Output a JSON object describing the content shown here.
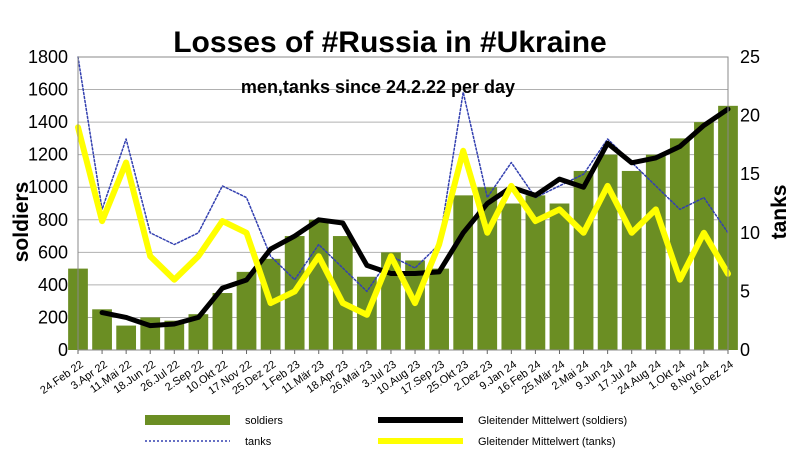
{
  "chart_data": {
    "type": "bar",
    "title": "Losses of #Russia in #Ukraine",
    "subtitle": "men,tanks since 24.2.22 per day",
    "ylabel_left": "soldiers",
    "ylabel_right": "tanks",
    "ylim_left": [
      0,
      1800
    ],
    "ylim_right": [
      0,
      25
    ],
    "yticks_left": [
      "0",
      "200",
      "400",
      "600",
      "800",
      "1000",
      "1200",
      "1400",
      "1600",
      "1800"
    ],
    "yticks_right": [
      "0",
      "5",
      "10",
      "15",
      "20",
      "25"
    ],
    "x_tick_labels": [
      "24.Feb 22",
      "3.Apr 22",
      "11.Mai 22",
      "18.Jun 22",
      "26.Jul 22",
      "2.Sep 22",
      "10.Okt 22",
      "17.Nov 22",
      "25.Dez 22",
      "1.Feb 23",
      "11.Mär 23",
      "18.Apr 23",
      "26.Mai 23",
      "3.Jul 23",
      "10.Aug 23",
      "17.Sep 23",
      "25.Okt 23",
      "2.Dez 23",
      "9.Jan 24",
      "16.Feb 24",
      "25.Mär 24",
      "2.Mai 24",
      "9.Jun 24",
      "17.Jul 24",
      "24.Aug 24",
      "1.Okt 24",
      "8.Nov 24",
      "16.Dez 24"
    ],
    "grid": true,
    "legend_position": "bottom",
    "series": [
      {
        "name": "soldiers",
        "kind": "bar",
        "axis": "left",
        "color": "#6b8e23",
        "x": [
          "24.Feb 22",
          "3.Apr 22",
          "11.Mai 22",
          "18.Jun 22",
          "26.Jul 22",
          "2.Sep 22",
          "10.Okt 22",
          "17.Nov 22",
          "25.Dez 22",
          "1.Feb 23",
          "11.Mär 23",
          "18.Apr 23",
          "26.Mai 23",
          "3.Jul 23",
          "10.Aug 23",
          "17.Sep 23",
          "25.Okt 23",
          "2.Dez 23",
          "9.Jan 24",
          "16.Feb 24",
          "25.Mär 24",
          "2.Mai 24",
          "9.Jun 24",
          "17.Jul 24",
          "24.Aug 24",
          "1.Okt 24",
          "8.Nov 24",
          "16.Dez 24"
        ],
        "values": [
          500,
          250,
          150,
          200,
          180,
          220,
          350,
          480,
          560,
          700,
          800,
          700,
          450,
          600,
          550,
          500,
          950,
          1000,
          900,
          950,
          900,
          1100,
          1200,
          1100,
          1200,
          1300,
          1400,
          1500
        ]
      },
      {
        "name": "tanks",
        "kind": "line-dotted",
        "axis": "right",
        "color": "#3340b0",
        "x": [
          "24.Feb 22",
          "3.Apr 22",
          "11.Mai 22",
          "18.Jun 22",
          "26.Jul 22",
          "2.Sep 22",
          "10.Okt 22",
          "17.Nov 22",
          "25.Dez 22",
          "1.Feb 23",
          "11.Mär 23",
          "18.Apr 23",
          "26.Mai 23",
          "3.Jul 23",
          "10.Aug 23",
          "17.Sep 23",
          "25.Okt 23",
          "2.Dez 23",
          "9.Jan 24",
          "16.Feb 24",
          "25.Mär 24",
          "2.Mai 24",
          "9.Jun 24",
          "17.Jul 24",
          "24.Aug 24",
          "1.Okt 24",
          "8.Nov 24",
          "16.Dez 24"
        ],
        "values": [
          25,
          12,
          18,
          10,
          9,
          10,
          14,
          13,
          8,
          6,
          9,
          7,
          5,
          8,
          7,
          9,
          22,
          13,
          16,
          13,
          14,
          15,
          18,
          16,
          14,
          12,
          13,
          10
        ]
      },
      {
        "name": "Gleitender Mittelwert (soldiers)",
        "kind": "line",
        "axis": "left",
        "color": "#000000",
        "x": [
          "3.Apr 22",
          "11.Mai 22",
          "18.Jun 22",
          "26.Jul 22",
          "2.Sep 22",
          "10.Okt 22",
          "17.Nov 22",
          "25.Dez 22",
          "1.Feb 23",
          "11.Mär 23",
          "18.Apr 23",
          "26.Mai 23",
          "3.Jul 23",
          "10.Aug 23",
          "17.Sep 23",
          "25.Okt 23",
          "2.Dez 23",
          "9.Jan 24",
          "16.Feb 24",
          "25.Mär 24",
          "2.Mai 24",
          "9.Jun 24",
          "17.Jul 24",
          "24.Aug 24",
          "1.Okt 24",
          "8.Nov 24",
          "16.Dez 24"
        ],
        "values": [
          230,
          200,
          150,
          160,
          200,
          380,
          430,
          620,
          700,
          800,
          780,
          520,
          470,
          470,
          480,
          720,
          900,
          1000,
          950,
          1050,
          1000,
          1270,
          1150,
          1180,
          1250,
          1380,
          1480
        ]
      },
      {
        "name": "Gleitender Mittelwert (tanks)",
        "kind": "line",
        "axis": "right",
        "color": "#ffff00",
        "x": [
          "24.Feb 22",
          "3.Apr 22",
          "11.Mai 22",
          "18.Jun 22",
          "26.Jul 22",
          "2.Sep 22",
          "10.Okt 22",
          "17.Nov 22",
          "25.Dez 22",
          "1.Feb 23",
          "11.Mär 23",
          "18.Apr 23",
          "26.Mai 23",
          "3.Jul 23",
          "10.Aug 23",
          "17.Sep 23",
          "25.Okt 23",
          "2.Dez 23",
          "9.Jan 24",
          "16.Feb 24",
          "25.Mär 24",
          "2.Mai 24",
          "9.Jun 24",
          "17.Jul 24",
          "24.Aug 24",
          "1.Okt 24",
          "8.Nov 24",
          "16.Dez 24"
        ],
        "values": [
          19,
          11,
          16,
          8,
          6,
          8,
          11,
          10,
          4,
          5,
          8,
          4,
          3,
          8,
          4,
          9,
          17,
          10,
          14,
          11,
          12,
          10,
          14,
          10,
          12,
          6,
          10,
          6.5
        ]
      }
    ],
    "legend": [
      {
        "label": "soldiers",
        "kind": "bar",
        "color": "#6b8e23"
      },
      {
        "label": "Gleitender Mittelwert (soldiers)",
        "kind": "line",
        "color": "#000000"
      },
      {
        "label": "tanks",
        "kind": "line-dotted",
        "color": "#3340b0"
      },
      {
        "label": "Gleitender Mittelwert (tanks)",
        "kind": "line",
        "color": "#ffff00"
      }
    ]
  }
}
